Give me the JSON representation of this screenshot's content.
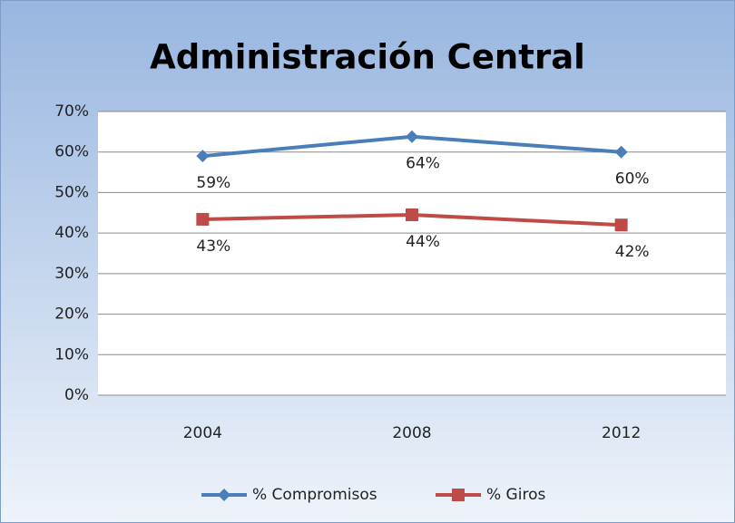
{
  "chart_data": {
    "type": "line",
    "title": "Administración Central",
    "categories": [
      "2004",
      "2008",
      "2012"
    ],
    "series": [
      {
        "name": "% Compromisos",
        "color": "#4a7ebb",
        "marker": "diamond",
        "values": [
          59,
          63.8,
          60
        ],
        "value_labels": [
          "59%",
          "64%",
          "60%"
        ]
      },
      {
        "name": "% Giros",
        "color": "#be4b48",
        "marker": "square",
        "values": [
          43.4,
          44.5,
          42
        ],
        "value_labels": [
          "43%",
          "44%",
          "42%"
        ]
      }
    ],
    "ylim": [
      0,
      70
    ],
    "yticks": [
      {
        "value": 0,
        "label": "0%"
      },
      {
        "value": 10,
        "label": "10%"
      },
      {
        "value": 20,
        "label": "20%"
      },
      {
        "value": 30,
        "label": "30%"
      },
      {
        "value": 40,
        "label": "40%"
      },
      {
        "value": 50,
        "label": "50%"
      },
      {
        "value": 60,
        "label": "60%"
      },
      {
        "value": 70,
        "label": "70%"
      }
    ],
    "grid": true,
    "legend": "bottom"
  }
}
